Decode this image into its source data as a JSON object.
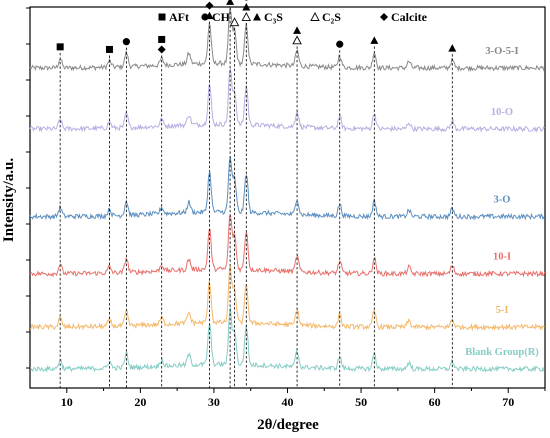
{
  "chart_data": {
    "type": "line",
    "xlabel": "2θ/degree",
    "ylabel": "Intensity/a.u.",
    "xlim": [
      5,
      75
    ],
    "x_ticks": [
      "10",
      "20",
      "30",
      "40",
      "50",
      "60",
      "70"
    ],
    "y_ticks_visible": false,
    "grid": false,
    "legend": {
      "placement": "top",
      "entries": [
        {
          "marker": "square",
          "label": "AFt"
        },
        {
          "marker": "circle",
          "label": "CH"
        },
        {
          "marker": "triangle",
          "label": "C3S",
          "display": "C₃S"
        },
        {
          "marker": "open-triangle",
          "label": "C2S",
          "display": "C₂S"
        },
        {
          "marker": "diamond",
          "label": "Calcite"
        }
      ]
    },
    "series": [
      {
        "name": "3-O-5-I",
        "color": "#8a8a8a",
        "baseline": 0.84
      },
      {
        "name": "10-O",
        "color": "#b7aee2",
        "baseline": 0.68
      },
      {
        "name": "3-O",
        "color": "#5b8fc0",
        "baseline": 0.45
      },
      {
        "name": "10-I",
        "color": "#e8706b",
        "baseline": 0.3
      },
      {
        "name": "5-I",
        "color": "#f4b86a",
        "baseline": 0.16
      },
      {
        "name": "Blank Group(R)",
        "color": "#86cdc6",
        "baseline": 0.05
      }
    ],
    "peaks": [
      {
        "x": 9.1,
        "h": 0.35,
        "phases": [
          "AFt"
        ]
      },
      {
        "x": 15.8,
        "h": 0.25,
        "phases": [
          "AFt"
        ]
      },
      {
        "x": 18.1,
        "h": 0.55,
        "phases": [
          "CH"
        ]
      },
      {
        "x": 22.9,
        "h": 0.25,
        "phases": [
          "AFt",
          "Calcite"
        ]
      },
      {
        "x": 26.6,
        "h": 0.4,
        "phases": []
      },
      {
        "x": 29.4,
        "h": 1.55,
        "phases": [
          "Calcite",
          "C3S"
        ]
      },
      {
        "x": 32.2,
        "h": 2.1,
        "phases": [
          "C3S"
        ]
      },
      {
        "x": 32.8,
        "h": 1.3,
        "phases": [
          "C2S"
        ]
      },
      {
        "x": 34.4,
        "h": 1.5,
        "phases": [
          "CH",
          "C3S",
          "C2S"
        ]
      },
      {
        "x": 41.3,
        "h": 0.6,
        "phases": [
          "C3S",
          "C2S"
        ]
      },
      {
        "x": 47.1,
        "h": 0.45,
        "phases": [
          "CH"
        ]
      },
      {
        "x": 51.8,
        "h": 0.6,
        "phases": [
          "C3S"
        ]
      },
      {
        "x": 56.5,
        "h": 0.25,
        "phases": []
      },
      {
        "x": 62.4,
        "h": 0.3,
        "phases": [
          "C3S"
        ]
      }
    ]
  },
  "colors": {
    "axis": "#000000",
    "marker_dash": "#000000"
  }
}
